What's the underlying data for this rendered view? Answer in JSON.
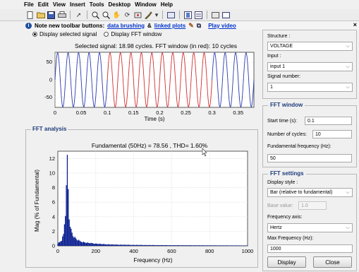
{
  "menu": [
    "File",
    "Edit",
    "View",
    "Insert",
    "Tools",
    "Desktop",
    "Window",
    "Help"
  ],
  "toolbar_icons": [
    "new-file-icon",
    "open-file-icon",
    "save-icon",
    "print-icon",
    "pointer-icon",
    "zoom-in-icon",
    "zoom-out-icon",
    "pan-icon",
    "rotate-icon",
    "datacursor-icon",
    "brush-icon",
    "link-icon",
    "colorbar-icon",
    "legend-icon",
    "hide-plot-icon",
    "show-plot-icon"
  ],
  "note": {
    "prefix": "Note new toolbar buttons:",
    "link1": "data brushing",
    "amp": "&",
    "link2": "linked plots",
    "link3": "Play video"
  },
  "radios": {
    "opt1": "Display selected signal",
    "opt2": "Display FFT window",
    "selected": "opt1"
  },
  "signal_plot": {
    "title": "Selected signal: 18.98 cycles. FFT window (in red): 10 cycles",
    "xlabel": "Time (s)",
    "yticks": [
      "50",
      "0",
      "-50"
    ],
    "xticks": [
      "0",
      "0.05",
      "0.1",
      "0.15",
      "0.2",
      "0.25",
      "0.3",
      "0.35"
    ]
  },
  "fft_group_title": "FFT analysis",
  "fft_plot": {
    "title": "Fundamental (50Hz) = 78.56 , THD= 1.60%",
    "xlabel": "Frequency (Hz)",
    "ylabel": "Mag (% of Fundamental)",
    "yticks": [
      "12",
      "10",
      "8",
      "6",
      "4",
      "2",
      "0"
    ],
    "xticks": [
      "0",
      "200",
      "400",
      "600",
      "800",
      "1000"
    ]
  },
  "chart_data": [
    {
      "type": "line",
      "title": "Selected signal: 18.98 cycles. FFT window (in red): 10 cycles",
      "xlabel": "Time (s)",
      "ylabel": "",
      "xlim": [
        0,
        0.38
      ],
      "ylim": [
        -80,
        80
      ],
      "frequency_hz": 50,
      "amplitude": 78.56,
      "series": [
        {
          "name": "",
          "x_range": [
            0,
            0.1
          ],
          "color": "#2b3bb0"
        },
        {
          "name": "FFT window",
          "x_range": [
            0.1,
            0.3
          ],
          "color": "#d03030"
        },
        {
          "name": "",
          "x_range": [
            0.3,
            0.38
          ],
          "color": "#2b3bb0"
        }
      ],
      "grid": true
    },
    {
      "type": "bar",
      "title": "Fundamental (50Hz) = 78.56 , THD= 1.60%",
      "xlabel": "Frequency (Hz)",
      "ylabel": "Mag (% of Fundamental)",
      "xlim": [
        0,
        1000
      ],
      "ylim": [
        0,
        13
      ],
      "x": [
        0,
        10,
        20,
        30,
        40,
        45,
        50,
        55,
        60,
        70,
        80,
        100,
        120,
        150,
        200,
        250,
        300,
        400,
        500,
        600,
        800,
        1000
      ],
      "values": [
        0.4,
        0.6,
        0.9,
        1.8,
        5.2,
        8.5,
        12.5,
        9.0,
        4.5,
        2.5,
        1.6,
        1.0,
        0.7,
        0.5,
        0.35,
        0.25,
        0.2,
        0.15,
        0.12,
        0.1,
        0.08,
        0.06
      ],
      "color": "#0a1f8f",
      "grid": true
    }
  ],
  "right": {
    "structure_label": "Structure :",
    "structure_value": "VOLTAGE",
    "input_label": "Input :",
    "input_value": "input 1",
    "signal_label": "Signal number:",
    "signal_value": "1",
    "fft_window_title": "FFT window",
    "start_time_label": "Start time (s):",
    "start_time_value": "0.1",
    "cycles_label": "Number of cycles:",
    "cycles_value": "10",
    "fund_freq_label": "Fundamental frequency (Hz):",
    "fund_freq_value": "50",
    "fft_settings_title": "FFT settings",
    "display_style_label": "Display style :",
    "display_style_value": "Bar (relative to fundamental)",
    "base_value_label": "Base value:",
    "base_value_value": "1.0",
    "freq_axis_label": "Frequency axis:",
    "freq_axis_value": "Hertz",
    "max_freq_label": "Max Frequency (Hz):",
    "max_freq_value": "1000",
    "display_btn": "Display",
    "close_btn": "Close"
  },
  "close_glyph": "×"
}
